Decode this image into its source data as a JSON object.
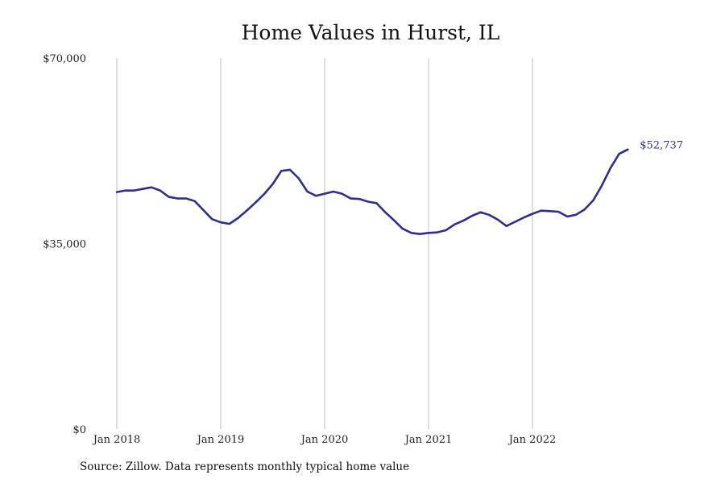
{
  "chart_data": {
    "type": "line",
    "title": "Home Values in Hurst, IL",
    "xlabel": "",
    "ylabel": "",
    "ylim": [
      0,
      70000
    ],
    "y_ticks": [
      "$0",
      "$35,000",
      "$70,000"
    ],
    "y_tick_values": [
      0,
      35000,
      70000
    ],
    "x_tick_labels": [
      "Jan 2018",
      "Jan 2019",
      "Jan 2020",
      "Jan 2021",
      "Jan 2022"
    ],
    "grid": "vertical",
    "end_label": "$52,737",
    "line_color": "#2e2e8f",
    "series": [
      {
        "x": [
          "2018-01",
          "2018-02",
          "2018-03",
          "2018-04",
          "2018-05",
          "2018-06",
          "2018-07",
          "2018-08",
          "2018-09",
          "2018-10",
          "2018-11",
          "2018-12",
          "2019-01",
          "2019-02",
          "2019-03",
          "2019-04",
          "2019-05",
          "2019-06",
          "2019-07",
          "2019-08",
          "2019-09",
          "2019-10",
          "2019-11",
          "2019-12",
          "2020-01",
          "2020-02",
          "2020-03",
          "2020-04",
          "2020-05",
          "2020-06",
          "2020-07",
          "2020-08",
          "2020-09",
          "2020-10",
          "2020-11",
          "2020-12",
          "2021-01",
          "2021-02",
          "2021-03",
          "2021-04",
          "2021-05",
          "2021-06",
          "2021-07",
          "2021-08",
          "2021-09",
          "2021-10",
          "2021-11",
          "2021-12",
          "2022-01",
          "2022-02",
          "2022-03",
          "2022-04",
          "2022-05",
          "2022-06",
          "2022-07",
          "2022-08",
          "2022-09",
          "2022-10",
          "2022-11",
          "2022-12"
        ],
        "values": [
          44700,
          45000,
          45000,
          45300,
          45600,
          45000,
          43800,
          43500,
          43500,
          43000,
          41300,
          39600,
          39000,
          38700,
          39800,
          41200,
          42700,
          44300,
          46200,
          48700,
          48900,
          47300,
          44800,
          44000,
          44400,
          44800,
          44400,
          43500,
          43400,
          42900,
          42600,
          40900,
          39400,
          37800,
          37000,
          36800,
          37000,
          37100,
          37500,
          38600,
          39300,
          40200,
          40900,
          40400,
          39500,
          38300,
          39100,
          39900,
          40600,
          41200,
          41100,
          41000,
          40100,
          40400,
          41400,
          43100,
          45900,
          49200,
          51900,
          52737
        ]
      }
    ]
  },
  "source_note": "Source: Zillow. Data represents monthly typical home value"
}
